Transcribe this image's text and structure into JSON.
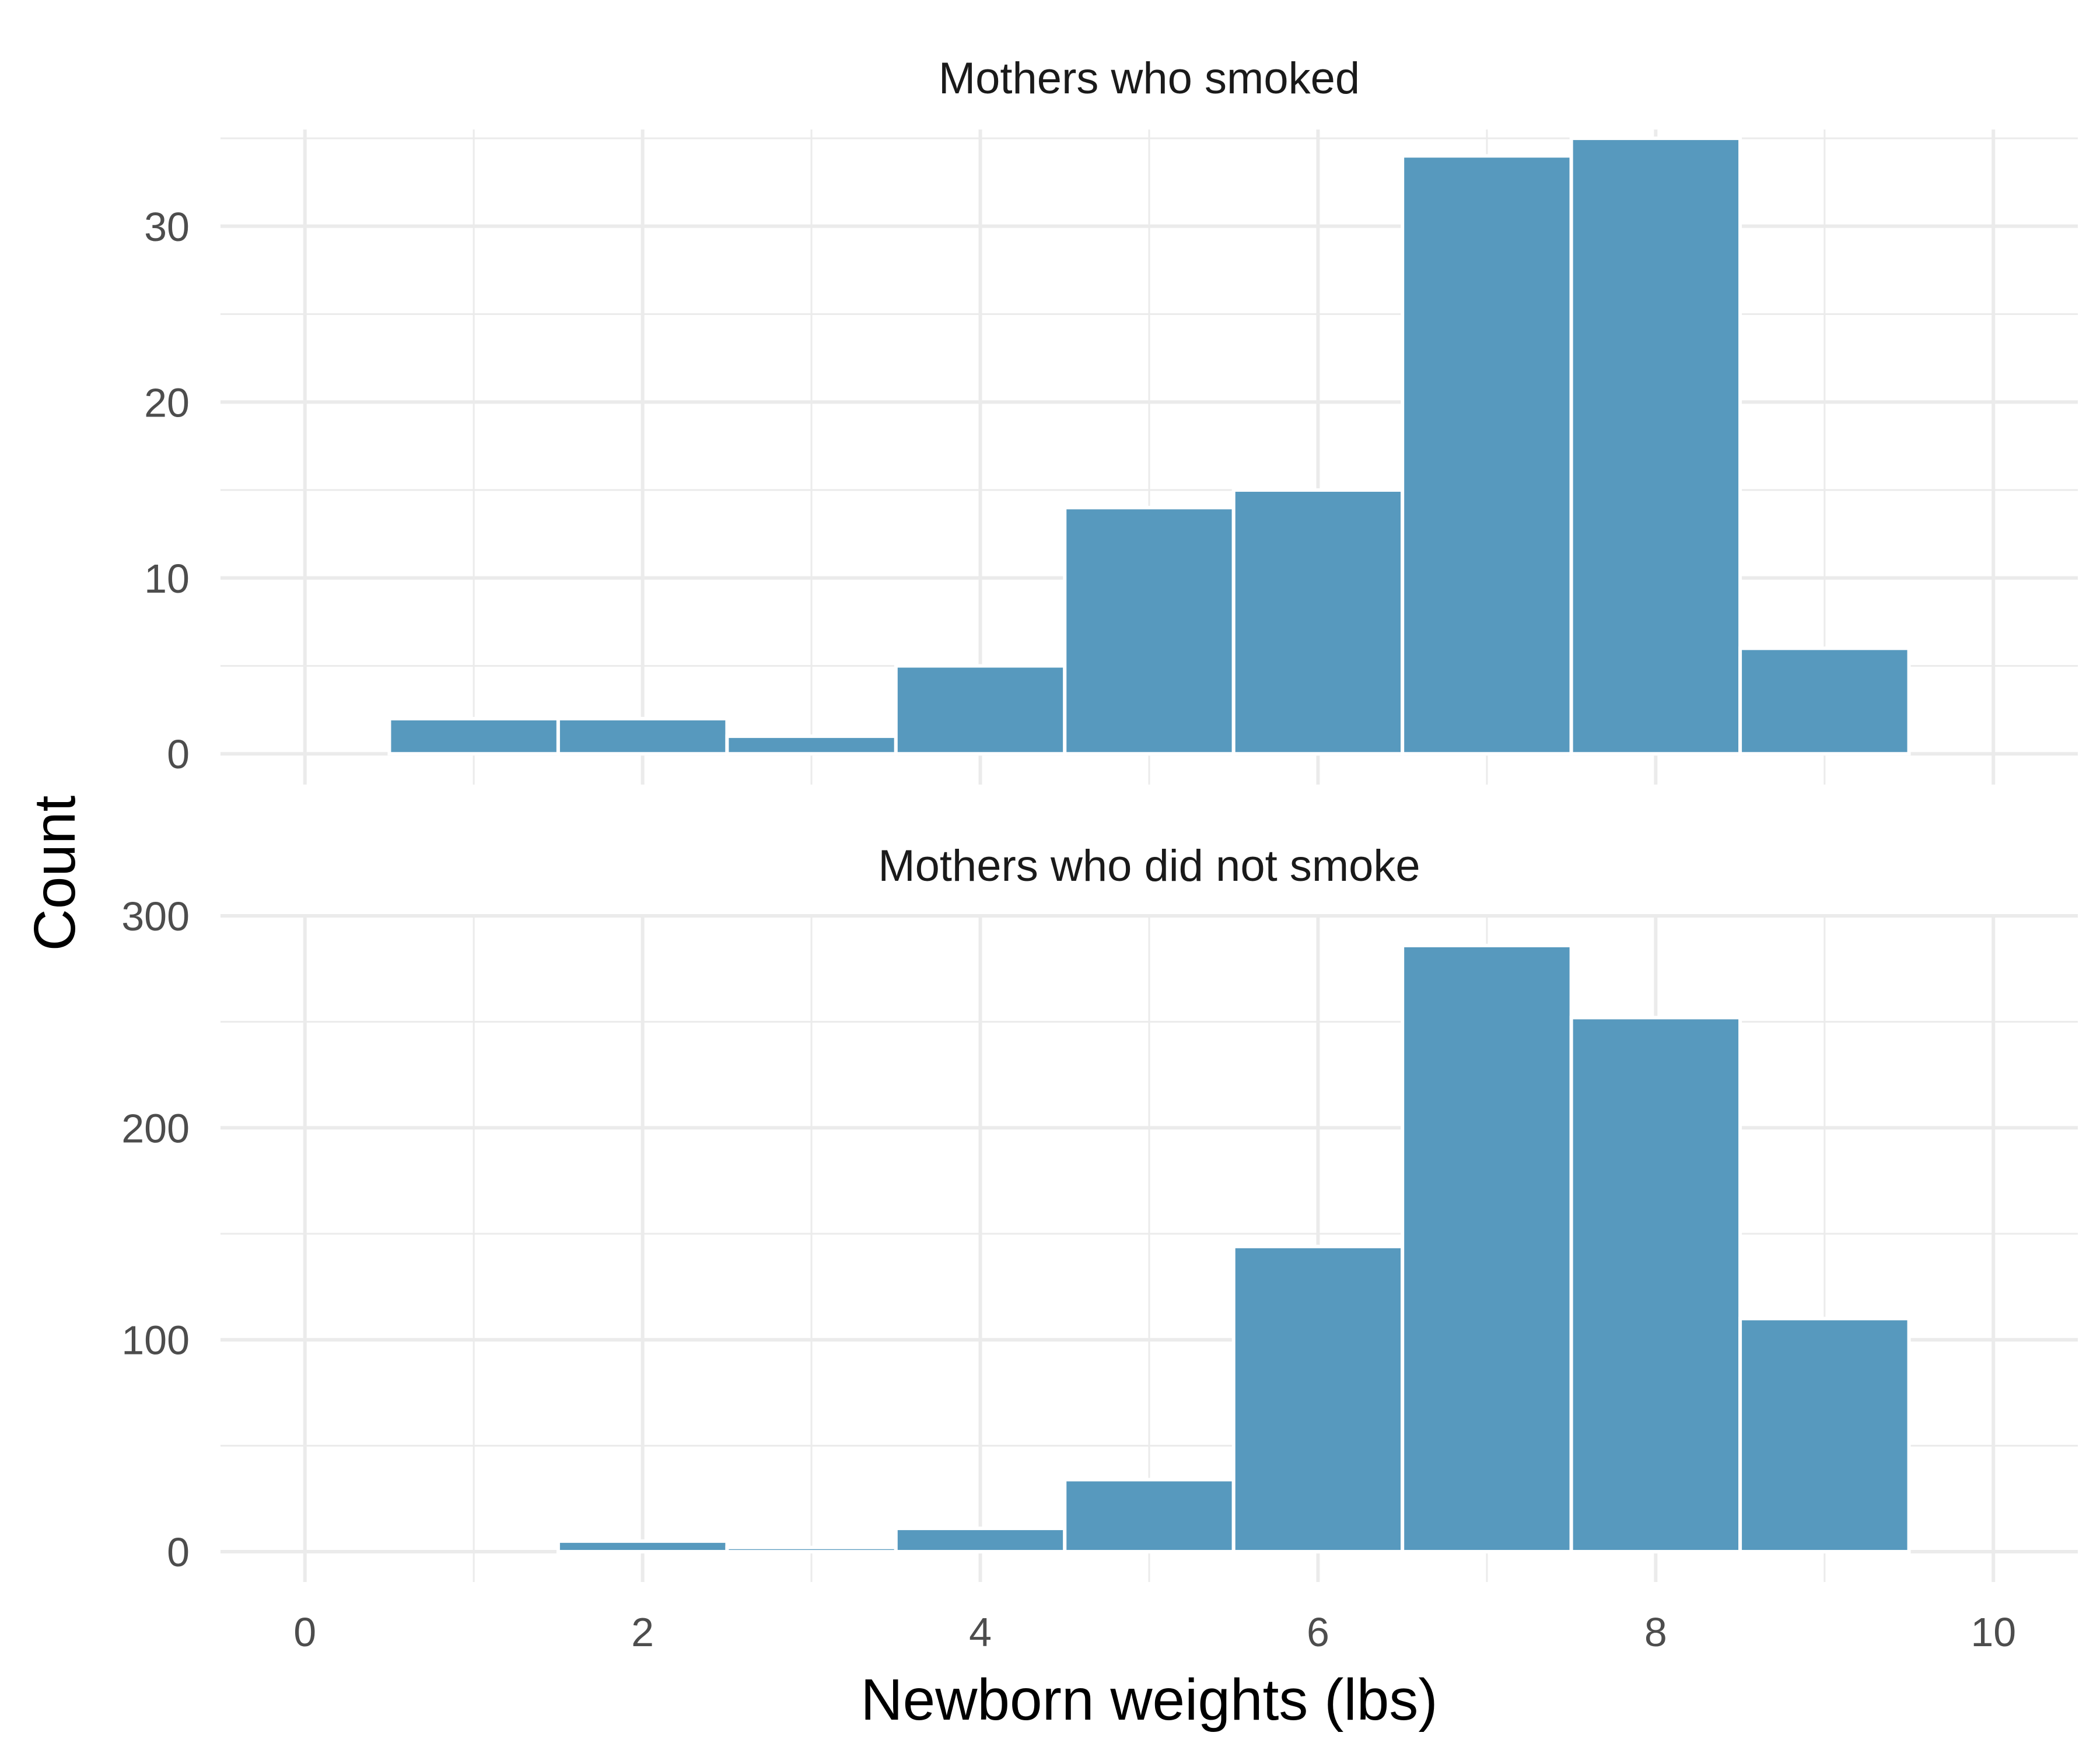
{
  "chart_data": {
    "type": "bar",
    "subtype": "faceted histogram",
    "xlabel": "Newborn weights (lbs)",
    "ylabel": "Count",
    "xlim": [
      -0.5,
      10.5
    ],
    "x_ticks": [
      0,
      2,
      4,
      6,
      8,
      10
    ],
    "x_minor_ticks": [
      1,
      3,
      5,
      7,
      9
    ],
    "bin_width": 1,
    "grid": true,
    "bar_color": "#5799be",
    "grid_color": "#ebebeb",
    "facets": [
      {
        "title": "Mothers who smoked",
        "ylim": [
          -1.75,
          35.5
        ],
        "y_ticks": [
          0,
          10,
          20,
          30
        ],
        "y_minor_ticks": [
          5,
          15,
          25,
          35
        ],
        "bins": [
          {
            "x": 1,
            "count": 2
          },
          {
            "x": 2,
            "count": 2
          },
          {
            "x": 3,
            "count": 1
          },
          {
            "x": 4,
            "count": 5
          },
          {
            "x": 5,
            "count": 14
          },
          {
            "x": 6,
            "count": 15
          },
          {
            "x": 7,
            "count": 34
          },
          {
            "x": 8,
            "count": 35
          },
          {
            "x": 9,
            "count": 6
          }
        ]
      },
      {
        "title": "Mothers who did not smoke",
        "ylim": [
          -14.3,
          300
        ],
        "y_ticks": [
          0,
          100,
          200,
          300
        ],
        "y_minor_ticks": [
          50,
          150,
          250
        ],
        "bins": [
          {
            "x": 1,
            "count": 0
          },
          {
            "x": 2,
            "count": 5
          },
          {
            "x": 3,
            "count": 2
          },
          {
            "x": 4,
            "count": 11
          },
          {
            "x": 5,
            "count": 34
          },
          {
            "x": 6,
            "count": 144
          },
          {
            "x": 7,
            "count": 286
          },
          {
            "x": 8,
            "count": 252
          },
          {
            "x": 9,
            "count": 110
          }
        ]
      }
    ]
  }
}
